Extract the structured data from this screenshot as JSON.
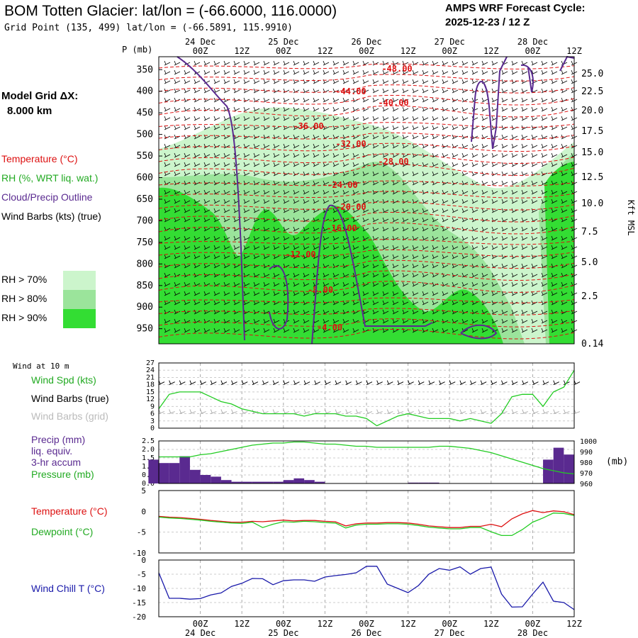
{
  "header": {
    "title": "BOM Totten Glacier:  lat/lon = (-66.6000, 116.0000)",
    "grid_point": "Grid Point (135, 499) lat/lon = (-66.5891, 115.9910)",
    "cycle_line1": "AMPS WRF Forecast Cycle:",
    "cycle_line2": "2025-12-23 / 12  Z",
    "model_grid_label": "Model Grid ΔX:",
    "model_grid_value": "8.000 km"
  },
  "colors": {
    "temperature": "#dd1111",
    "rh": "#22cc22",
    "cloud": "#5a2a90",
    "wind_chill": "#1a1aaa",
    "rh70": "#ccf5cc",
    "rh80": "#9be49b",
    "rh90": "#33dd33"
  },
  "time_axis": {
    "ticks": [
      "00Z",
      "12Z",
      "00Z",
      "12Z",
      "00Z",
      "12Z",
      "00Z",
      "12Z",
      "00Z",
      "12Z"
    ],
    "dates": [
      "24 Dec",
      "25 Dec",
      "26 Dec",
      "27 Dec",
      "28 Dec"
    ]
  },
  "legend": {
    "temperature": "Temperature (°C)",
    "rh": "RH (%, WRT liq. wat.)",
    "cloud": "Cloud/Precip Outline",
    "wind_barbs": "Wind Barbs (kts) (true)",
    "rh70": "RH > 70%",
    "rh80": "RH > 80%",
    "rh90": "RH > 90%"
  },
  "chart_data": [
    {
      "type": "heatmap",
      "name": "time-height cross section",
      "yaxis_left_label": "P (mb)",
      "pressure_ticks": [
        350,
        400,
        450,
        500,
        550,
        600,
        650,
        700,
        750,
        800,
        850,
        900,
        950
      ],
      "yaxis_right_label": "Kft MSL",
      "height_ticks": [
        "25.0",
        "22.5",
        "20.0",
        "17.5",
        "15.0",
        "12.5",
        "10.0",
        "7.5",
        "5.0",
        "2.5",
        "0.14"
      ],
      "temperature_contours": [
        "-48.00",
        "-44.00",
        "-40.00",
        "-36.00",
        "-32.00",
        "-28.00",
        "-24.00",
        "-20.00",
        "-16.00",
        "-12.00",
        "-8.00",
        "-4.00"
      ]
    },
    {
      "type": "line",
      "name": "wind at 10 m",
      "corner_label": "Wind at 10 m",
      "labels": [
        "Wind Spd (kts)",
        "Wind Barbs (true)",
        "Wind Barbs (grid)"
      ],
      "yticks": [
        0,
        3,
        6,
        9,
        12,
        15,
        18,
        21,
        24,
        27
      ],
      "ylim": [
        0,
        27
      ],
      "x_hours": [
        0,
        3,
        6,
        9,
        12,
        15,
        18,
        21,
        24,
        27,
        30,
        33,
        36,
        39,
        42,
        45,
        48,
        51,
        54,
        57,
        60,
        63,
        66,
        69,
        72,
        75,
        78,
        81,
        84,
        87,
        90,
        93,
        96,
        99,
        102,
        105,
        108,
        111,
        114,
        117,
        120
      ],
      "speed_kts": [
        8,
        14,
        15,
        15,
        15,
        13,
        11,
        10,
        8,
        7,
        6,
        6,
        6,
        6,
        5,
        6,
        6,
        6,
        5,
        5,
        4,
        1,
        3,
        5,
        6,
        5,
        4,
        4,
        4,
        3,
        4,
        3,
        2,
        6,
        13,
        14,
        14,
        9,
        15,
        17,
        24
      ]
    },
    {
      "type": "bar",
      "name": "precip and pressure",
      "labels": [
        "Precip (mm)",
        "liq. equiv.",
        "3-hr accum",
        "Pressure (mb)"
      ],
      "precip_yticks": [
        "2.5",
        "2.0",
        "1.5",
        "1.0",
        "0.5",
        "0.0"
      ],
      "pressure_yticks": [
        1000,
        990,
        980,
        970,
        960
      ],
      "pressure_unit": "(mb)",
      "precip_mm": [
        1.4,
        1.2,
        1.2,
        1.6,
        0.8,
        0.5,
        0.4,
        0.2,
        0.1,
        0.1,
        0.1,
        0.1,
        0.1,
        0.2,
        0.3,
        0.2,
        0.1,
        0.0,
        0.0,
        0.0,
        0.0,
        0.0,
        0.0,
        0.0,
        0.0,
        0.05,
        0.05,
        0.05,
        0.0,
        0.0,
        0.0,
        0.0,
        0.0,
        0.0,
        0.0,
        0.0,
        0.0,
        0.0,
        1.4,
        2.1,
        1.7
      ],
      "pressure_mb": [
        985,
        985,
        985,
        985,
        987,
        988,
        990,
        992,
        994,
        996,
        997,
        998,
        998,
        999,
        999,
        998,
        997,
        997,
        996,
        995,
        995,
        994,
        994,
        994,
        994,
        994,
        994,
        995,
        995,
        994,
        993,
        991,
        989,
        986,
        983,
        980,
        977,
        974,
        972,
        970,
        969
      ]
    },
    {
      "type": "line",
      "name": "temperature and dewpoint",
      "labels": [
        "Temperature (°C)",
        "Dewpoint (°C)"
      ],
      "yticks": [
        5,
        0,
        -5,
        -10
      ],
      "ylim": [
        -10,
        5
      ],
      "temperature_c": [
        -1.2,
        -1.4,
        -1.5,
        -1.7,
        -1.9,
        -2.2,
        -2.4,
        -2.6,
        -2.6,
        -2.4,
        -2.5,
        -2.3,
        -2.1,
        -2.3,
        -2.2,
        -2.2,
        -2.4,
        -2.5,
        -3.5,
        -3.0,
        -2.8,
        -2.8,
        -2.7,
        -2.7,
        -2.8,
        -3.1,
        -3.5,
        -3.7,
        -3.9,
        -3.9,
        -3.6,
        -3.6,
        -3.1,
        -3.7,
        -1.8,
        -0.6,
        0.2,
        -0.3,
        0.1,
        -0.1,
        -0.8
      ],
      "dewpoint_c": [
        -1.4,
        -1.6,
        -1.7,
        -1.9,
        -2.1,
        -2.4,
        -2.6,
        -2.8,
        -2.9,
        -2.6,
        -3.9,
        -3.1,
        -2.5,
        -2.6,
        -2.4,
        -2.5,
        -2.7,
        -2.8,
        -4.0,
        -3.3,
        -3.1,
        -3.1,
        -3.0,
        -3.0,
        -3.1,
        -3.4,
        -3.8,
        -4.0,
        -4.2,
        -4.2,
        -3.9,
        -3.9,
        -4.9,
        -5.8,
        -5.8,
        -4.4,
        -2.6,
        -1.6,
        -0.4,
        -0.5,
        -1.0
      ]
    },
    {
      "type": "line",
      "name": "wind chill",
      "labels": [
        "Wind Chill T (°C)"
      ],
      "yticks": [
        0,
        -5,
        -10,
        -15,
        -20
      ],
      "ylim": [
        -20,
        0
      ],
      "wind_chill_c": [
        -4.5,
        -13.5,
        -13.5,
        -13.8,
        -13.6,
        -12.3,
        -11.6,
        -9.3,
        -8.2,
        -6.5,
        -6.6,
        -8.7,
        -7.3,
        -7.0,
        -7.0,
        -7.5,
        -6.0,
        -5.5,
        -5.1,
        -4.5,
        -2.2,
        -2.2,
        -8.5,
        -10.0,
        -11.5,
        -9.0,
        -5.0,
        -3.0,
        -3.6,
        -2.4,
        -5.0,
        -3.0,
        -2.5,
        -12.0,
        -16.6,
        -16.5,
        -12.0,
        -7.8,
        -14.5,
        -15.0,
        -17.5
      ]
    }
  ]
}
